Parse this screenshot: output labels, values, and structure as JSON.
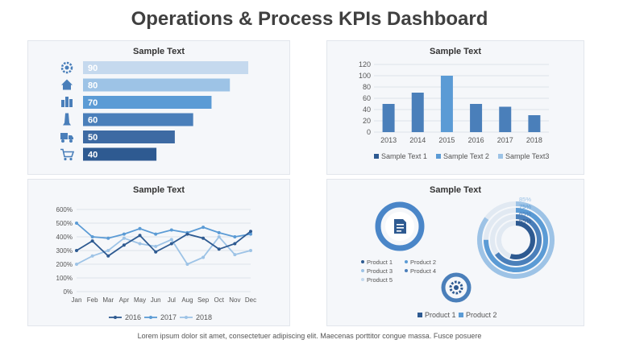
{
  "title": "Operations & Process KPIs Dashboard",
  "footer": "Lorem ipsum dolor sit amet, consectetuer adipiscing elit. Maecenas porttitor congue massa. Fusce posuere",
  "panels": {
    "p1_title": "Sample Text",
    "p2_title": "Sample Text",
    "p3_title": "Sample Text",
    "p4_title": "Sample Text"
  },
  "colors": {
    "dark": "#2e5a91",
    "mid": "#4a86c8",
    "light": "#9dc3e6",
    "pale": "#c5d9ee"
  },
  "chart_data": [
    {
      "type": "bar",
      "orientation": "horizontal",
      "icons": [
        "gear-icon",
        "home-icon",
        "buildings-icon",
        "tower-icon",
        "truck-icon",
        "cart-icon"
      ],
      "values": [
        90,
        80,
        70,
        60,
        50,
        40
      ],
      "labels": [
        "90",
        "80",
        "70",
        "60",
        "50",
        "40"
      ],
      "colors": [
        "#c5d9ee",
        "#9dc3e6",
        "#5b9bd5",
        "#4a7fba",
        "#3d6aa3",
        "#2e5a91"
      ]
    },
    {
      "type": "bar",
      "categories": [
        "2013",
        "2014",
        "2015",
        "2016",
        "2017",
        "2018"
      ],
      "values": [
        50,
        70,
        100,
        50,
        45,
        30
      ],
      "ylim": [
        0,
        120
      ],
      "yticks": [
        "0",
        "20",
        "40",
        "60",
        "80",
        "100",
        "120"
      ],
      "legend": [
        "Sample Text 1",
        "Sample Text 2",
        "Sample Text3"
      ],
      "legend_colors": [
        "#2e5a91",
        "#5b9bd5",
        "#9dc3e6"
      ]
    },
    {
      "type": "line",
      "categories": [
        "Jan",
        "Feb",
        "Mar",
        "Apr",
        "May",
        "Jun",
        "Jul",
        "Aug",
        "Sep",
        "Oct",
        "Nov",
        "Dec"
      ],
      "ylim": [
        0,
        600
      ],
      "yticks": [
        "0%",
        "100%",
        "200%",
        "300%",
        "400%",
        "500%",
        "600%"
      ],
      "series": [
        {
          "name": "2016",
          "values": [
            300,
            370,
            260,
            340,
            410,
            290,
            350,
            420,
            390,
            310,
            350,
            440
          ],
          "color": "#2e5a91"
        },
        {
          "name": "2017",
          "values": [
            500,
            400,
            390,
            420,
            460,
            420,
            450,
            430,
            470,
            430,
            400,
            420
          ],
          "color": "#5b9bd5"
        },
        {
          "name": "2018",
          "values": [
            200,
            260,
            300,
            390,
            350,
            330,
            380,
            200,
            250,
            400,
            270,
            300
          ],
          "color": "#9dc3e6"
        }
      ]
    },
    {
      "type": "pie",
      "legend": [
        "Product 1",
        "Product 2",
        "Product 3",
        "Product 4",
        "Product 5"
      ],
      "legend_colors": [
        "#2e5a91",
        "#5b9bd5",
        "#9dc3e6",
        "#4a7fba",
        "#c5d9ee"
      ],
      "icons": [
        "document-icon",
        "gear-icon"
      ]
    },
    {
      "type": "pie",
      "style": "radial",
      "values": [
        85,
        75,
        65,
        55
      ],
      "labels": [
        "85%",
        "75%",
        "65%",
        "55%"
      ],
      "colors": [
        "#9dc3e6",
        "#5b9bd5",
        "#4a7fba",
        "#2e5a91"
      ],
      "legend": [
        "Product 1",
        "Product 2"
      ],
      "legend_colors": [
        "#2e5a91",
        "#5b9bd5"
      ]
    }
  ]
}
